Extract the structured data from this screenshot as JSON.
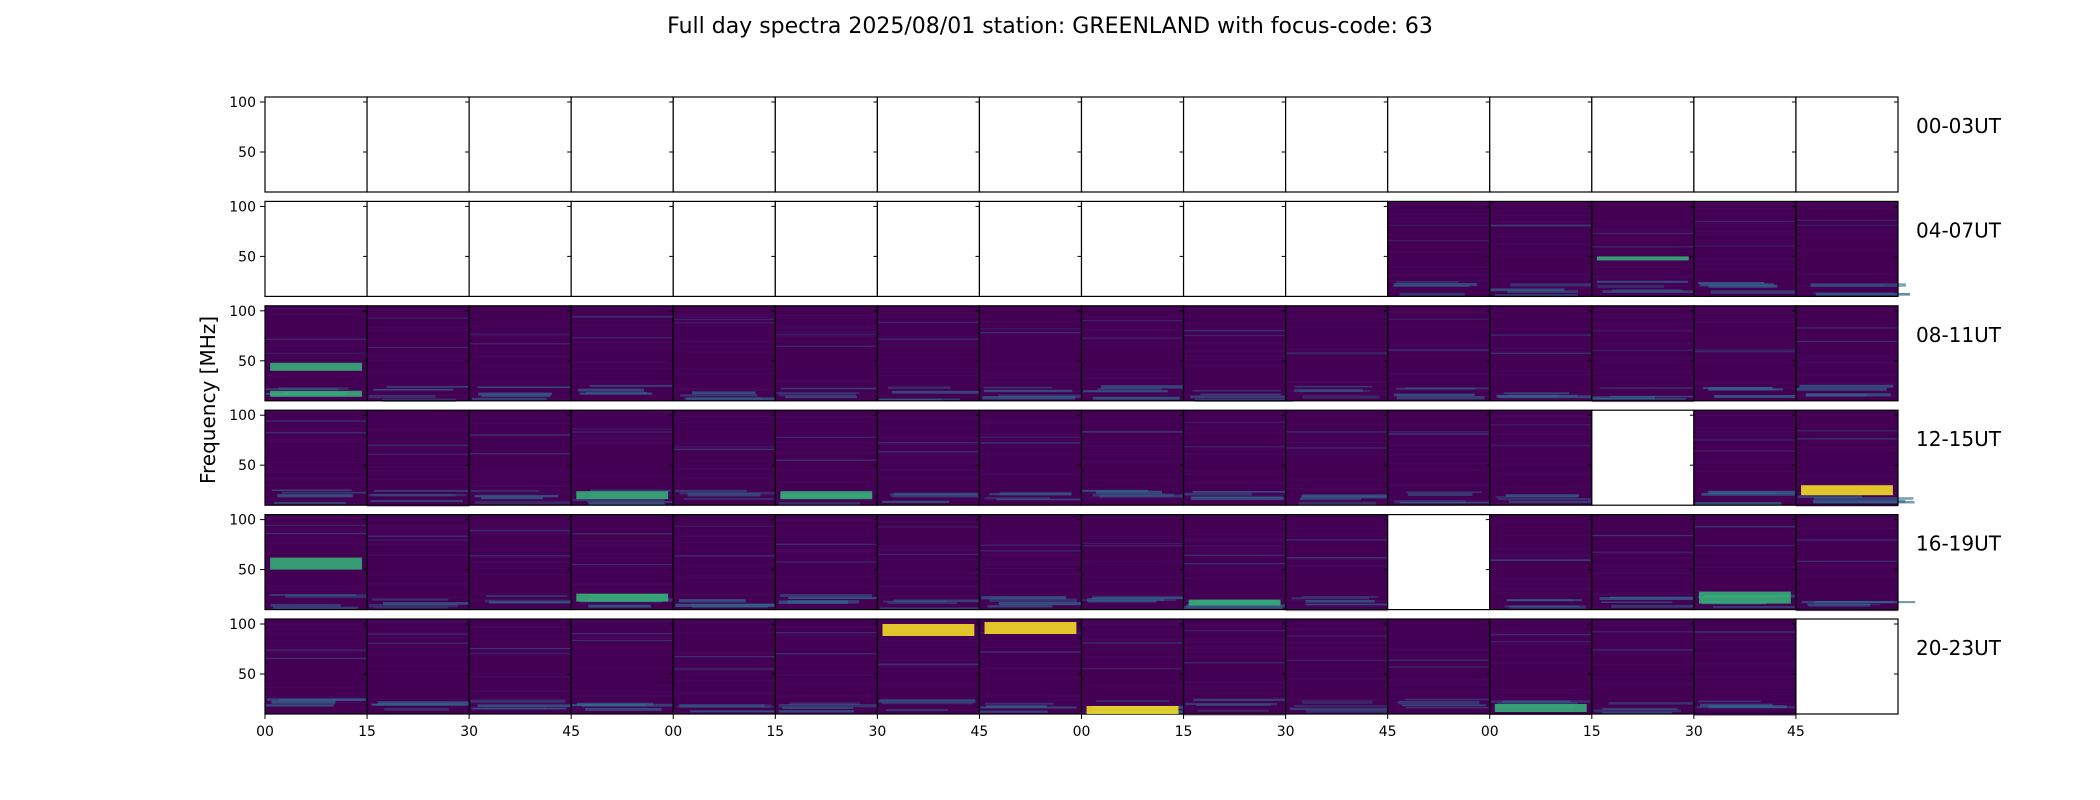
{
  "chart_data": {
    "type": "heatmap",
    "title": "Full day spectra 2025/08/01 station: GREENLAND with focus-code: 63",
    "ylabel": "Frequency [MHz]",
    "xlabel": "",
    "ylim": [
      10,
      105
    ],
    "yticks": [
      50,
      100
    ],
    "xtick_labels": [
      "00",
      "15",
      "30",
      "45",
      "00",
      "15",
      "30",
      "45",
      "00",
      "15",
      "30",
      "45",
      "00",
      "15",
      "30",
      "45"
    ],
    "colormap": "viridis",
    "colors": {
      "background": "#440154",
      "low": "#46085c",
      "mid": "#31688e",
      "high": "#35b779",
      "peak": "#fde725",
      "empty": "#ffffff"
    },
    "rows": [
      {
        "label": "00-03UT",
        "has_data": [
          0,
          0,
          0,
          0,
          0,
          0,
          0,
          0,
          0,
          0,
          0,
          0,
          0,
          0,
          0,
          0
        ]
      },
      {
        "label": "04-07UT",
        "has_data": [
          0,
          0,
          0,
          0,
          0,
          0,
          0,
          0,
          0,
          0,
          0,
          1,
          1,
          1,
          1,
          1
        ]
      },
      {
        "label": "08-11UT",
        "has_data": [
          1,
          1,
          1,
          1,
          1,
          1,
          1,
          1,
          1,
          1,
          1,
          1,
          1,
          1,
          1,
          1
        ]
      },
      {
        "label": "12-15UT",
        "has_data": [
          1,
          1,
          1,
          1,
          1,
          1,
          1,
          1,
          1,
          1,
          1,
          1,
          1,
          0,
          1,
          1
        ]
      },
      {
        "label": "16-19UT",
        "has_data": [
          1,
          1,
          1,
          1,
          1,
          1,
          1,
          1,
          1,
          1,
          1,
          0,
          1,
          1,
          1,
          1
        ]
      },
      {
        "label": "20-23UT",
        "has_data": [
          1,
          1,
          1,
          1,
          1,
          1,
          1,
          1,
          1,
          1,
          1,
          1,
          1,
          1,
          1,
          0
        ]
      }
    ],
    "bright_bands": [
      {
        "row": 1,
        "panel": 13,
        "freq": [
          46,
          50
        ],
        "level": "high"
      },
      {
        "row": 2,
        "panel": 0,
        "freq": [
          40,
          48
        ],
        "level": "high"
      },
      {
        "row": 2,
        "panel": 0,
        "freq": [
          14,
          20
        ],
        "level": "high"
      },
      {
        "row": 3,
        "panel": 15,
        "freq": [
          20,
          30
        ],
        "level": "peak"
      },
      {
        "row": 3,
        "panel": 5,
        "freq": [
          16,
          24
        ],
        "level": "high"
      },
      {
        "row": 3,
        "panel": 3,
        "freq": [
          16,
          24
        ],
        "level": "high"
      },
      {
        "row": 4,
        "panel": 0,
        "freq": [
          50,
          62
        ],
        "level": "high"
      },
      {
        "row": 4,
        "panel": 3,
        "freq": [
          18,
          26
        ],
        "level": "high"
      },
      {
        "row": 4,
        "panel": 14,
        "freq": [
          16,
          28
        ],
        "level": "high"
      },
      {
        "row": 4,
        "panel": 9,
        "freq": [
          14,
          20
        ],
        "level": "high"
      },
      {
        "row": 5,
        "panel": 6,
        "freq": [
          88,
          100
        ],
        "level": "peak"
      },
      {
        "row": 5,
        "panel": 7,
        "freq": [
          90,
          102
        ],
        "level": "peak"
      },
      {
        "row": 5,
        "panel": 8,
        "freq": [
          10,
          18
        ],
        "level": "peak"
      },
      {
        "row": 5,
        "panel": 12,
        "freq": [
          12,
          20
        ],
        "level": "high"
      }
    ]
  }
}
